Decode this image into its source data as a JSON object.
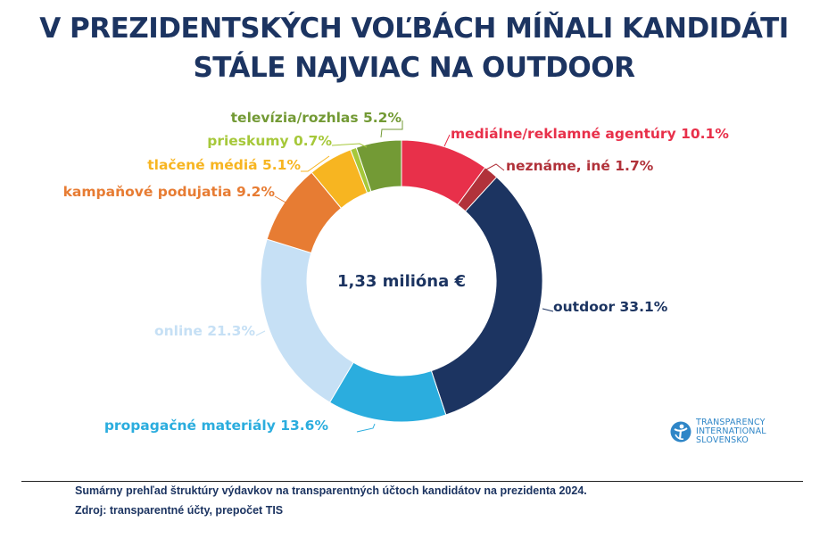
{
  "title": {
    "line1": "V PREZIDENTSKÝCH VOĽBÁCH MÍŇALI KANDIDÁTI",
    "line2": "STÁLE NAJVIAC NA OUTDOOR"
  },
  "chart_data": {
    "type": "pie",
    "variant": "donut",
    "title": "V PREZIDENTSKÝCH VOĽBÁCH MÍŇALI KANDIDÁTI STÁLE NAJVIAC NA OUTDOOR",
    "center_label": "1,33 milióna €",
    "unit": "%",
    "direction": "clockwise from top",
    "slices": [
      {
        "name": "mediálne/reklamné agentúry",
        "value": 10.1,
        "label": "mediálne/reklamné agentúry 10.1%",
        "color": "#e8304a"
      },
      {
        "name": "neznáme, iné",
        "value": 1.7,
        "label": "neznáme, iné 1.7%",
        "color": "#b1323a"
      },
      {
        "name": "outdoor",
        "value": 33.1,
        "label": "outdoor 33.1%",
        "color": "#1c3461"
      },
      {
        "name": "propagačné materiály",
        "value": 13.6,
        "label": "propagačné materiály 13.6%",
        "color": "#2badde"
      },
      {
        "name": "online",
        "value": 21.3,
        "label": "online 21.3%",
        "color": "#c6e0f5"
      },
      {
        "name": "kampaňové podujatia",
        "value": 9.2,
        "label": "kampaňové podujatia 9.2%",
        "color": "#e77c33"
      },
      {
        "name": "tlačené médiá",
        "value": 5.1,
        "label": "tlačené médiá 5.1%",
        "color": "#f7b521"
      },
      {
        "name": "prieskumy",
        "value": 0.7,
        "label": "prieskumy 0.7%",
        "color": "#a6c83a"
      },
      {
        "name": "televízia/rozhlas",
        "value": 5.2,
        "label": "televízia/rozhlas 5.2%",
        "color": "#739a35"
      }
    ]
  },
  "logo": {
    "line1": "TRANSPARENCY",
    "line2": "INTERNATIONAL",
    "line3": "SLOVENSKO"
  },
  "footer": {
    "line1": "Sumárny prehľad štruktúry výdavkov na transparentných účtoch kandidátov na prezidenta 2024.",
    "line2": "Zdroj: transparentné účty, prepočet TIS"
  },
  "colors": {
    "title": "#1c3461",
    "logo": "#2f86c7"
  }
}
